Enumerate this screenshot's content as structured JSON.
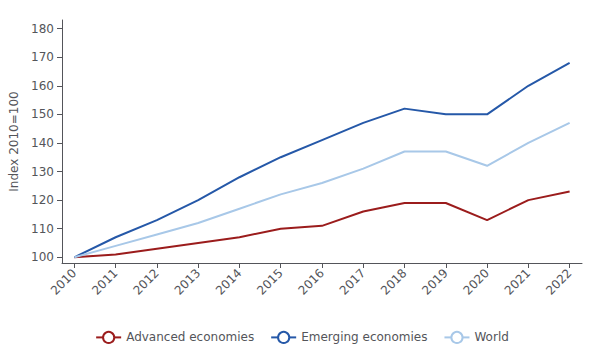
{
  "chart_data": {
    "type": "line",
    "x": [
      2010,
      2011,
      2012,
      2013,
      2014,
      2015,
      2016,
      2017,
      2018,
      2019,
      2020,
      2021,
      2022
    ],
    "xlim": [
      2009.7,
      2022.3
    ],
    "xticks": [
      2010,
      2011,
      2012,
      2013,
      2014,
      2015,
      2016,
      2017,
      2018,
      2019,
      2020,
      2021,
      2022
    ],
    "ylabel": "Index 2010=100",
    "ylim": [
      98,
      183
    ],
    "yticks": [
      100,
      110,
      120,
      130,
      140,
      150,
      160,
      170,
      180
    ],
    "grid": false,
    "legend": "bottom",
    "series": [
      {
        "name": "Advanced economies",
        "color": "#9B1C1C",
        "values": [
          100,
          101,
          103,
          105,
          107,
          110,
          111,
          116,
          119,
          119,
          113,
          120,
          123
        ]
      },
      {
        "name": "Emerging economies",
        "color": "#2558A8",
        "values": [
          100,
          107,
          113,
          120,
          128,
          135,
          141,
          147,
          152,
          150,
          150,
          160,
          168
        ]
      },
      {
        "name": "World",
        "color": "#A8C8E8",
        "values": [
          100,
          104,
          108,
          112,
          117,
          122,
          126,
          131,
          137,
          137,
          132,
          140,
          147
        ]
      }
    ]
  }
}
